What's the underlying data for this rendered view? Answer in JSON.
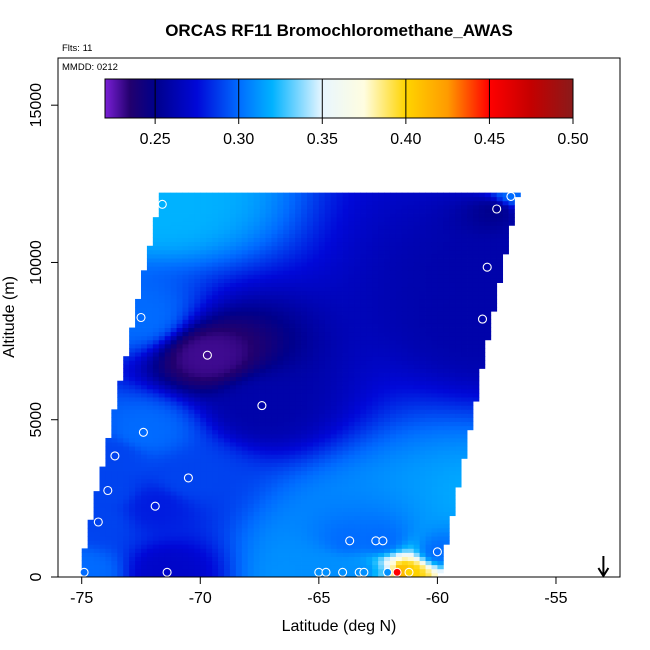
{
  "chart_data": {
    "type": "heatmap",
    "title": "ORCAS RF11 Bromochloromethane_AWAS",
    "annotations": [
      "Flts: 11",
      "MMDD: 0212"
    ],
    "xlabel": "Latitude (deg N)",
    "ylabel": "Altitude (m)",
    "xlim": [
      -76,
      -52.3
    ],
    "ylim": [
      0,
      16500
    ],
    "x_ticks": [
      -75,
      -70,
      -65,
      -60,
      -55
    ],
    "x_tick_labels": [
      "-75",
      "-70",
      "-65",
      "-60",
      "-55"
    ],
    "y_ticks": [
      0,
      5000,
      10000,
      15000
    ],
    "y_tick_labels": [
      "0",
      "5000",
      "10000",
      "15000"
    ],
    "grid": false,
    "colorbar": {
      "placement": "top-inside",
      "range": [
        0.22,
        0.5
      ],
      "ticks": [
        0.25,
        0.3,
        0.35,
        0.4,
        0.45,
        0.5
      ],
      "tick_labels": [
        "0.25",
        "0.30",
        "0.35",
        "0.40",
        "0.45",
        "0.50"
      ],
      "colors": [
        {
          "v": 0.22,
          "c": "#7a1fd6"
        },
        {
          "v": 0.235,
          "c": "#22006e"
        },
        {
          "v": 0.25,
          "c": "#00008b"
        },
        {
          "v": 0.275,
          "c": "#0008d8"
        },
        {
          "v": 0.3,
          "c": "#006bff"
        },
        {
          "v": 0.32,
          "c": "#00b2ff"
        },
        {
          "v": 0.35,
          "c": "#e8f6ff"
        },
        {
          "v": 0.375,
          "c": "#fffde0"
        },
        {
          "v": 0.4,
          "c": "#ffd400"
        },
        {
          "v": 0.425,
          "c": "#ff9b00"
        },
        {
          "v": 0.45,
          "c": "#ff0000"
        },
        {
          "v": 0.475,
          "c": "#c40000"
        },
        {
          "v": 0.5,
          "c": "#8a1a1a"
        }
      ]
    },
    "samples": [
      {
        "lat": -71.6,
        "alt": 11850,
        "value": 0.32
      },
      {
        "lat": -57.5,
        "alt": 11700,
        "value": 0.25
      },
      {
        "lat": -56.9,
        "alt": 12100,
        "value": 0.3
      },
      {
        "lat": -57.9,
        "alt": 9850,
        "value": 0.26
      },
      {
        "lat": -58.1,
        "alt": 8200,
        "value": 0.26
      },
      {
        "lat": -72.5,
        "alt": 8250,
        "value": 0.3
      },
      {
        "lat": -69.7,
        "alt": 7050,
        "value": 0.23
      },
      {
        "lat": -67.4,
        "alt": 5450,
        "value": 0.26
      },
      {
        "lat": -72.4,
        "alt": 4600,
        "value": 0.3
      },
      {
        "lat": -73.6,
        "alt": 3850,
        "value": 0.29
      },
      {
        "lat": -70.5,
        "alt": 3150,
        "value": 0.29
      },
      {
        "lat": -73.9,
        "alt": 2750,
        "value": 0.29
      },
      {
        "lat": -71.9,
        "alt": 2250,
        "value": 0.28
      },
      {
        "lat": -74.3,
        "alt": 1750,
        "value": 0.29
      },
      {
        "lat": -63.7,
        "alt": 1150,
        "value": 0.3
      },
      {
        "lat": -62.6,
        "alt": 1150,
        "value": 0.3
      },
      {
        "lat": -62.3,
        "alt": 1150,
        "value": 0.3
      },
      {
        "lat": -60.0,
        "alt": 800,
        "value": 0.3
      },
      {
        "lat": -74.9,
        "alt": 150,
        "value": 0.3
      },
      {
        "lat": -71.4,
        "alt": 150,
        "value": 0.27
      },
      {
        "lat": -65.0,
        "alt": 150,
        "value": 0.31
      },
      {
        "lat": -64.7,
        "alt": 150,
        "value": 0.31
      },
      {
        "lat": -64.0,
        "alt": 150,
        "value": 0.31
      },
      {
        "lat": -63.3,
        "alt": 150,
        "value": 0.31
      },
      {
        "lat": -63.1,
        "alt": 150,
        "value": 0.31
      },
      {
        "lat": -62.1,
        "alt": 150,
        "value": 0.31
      },
      {
        "lat": -61.7,
        "alt": 150,
        "value": 0.45
      },
      {
        "lat": -61.2,
        "alt": 150,
        "value": 0.4
      }
    ],
    "arrow": {
      "lat": -53.0,
      "direction": "down"
    }
  }
}
